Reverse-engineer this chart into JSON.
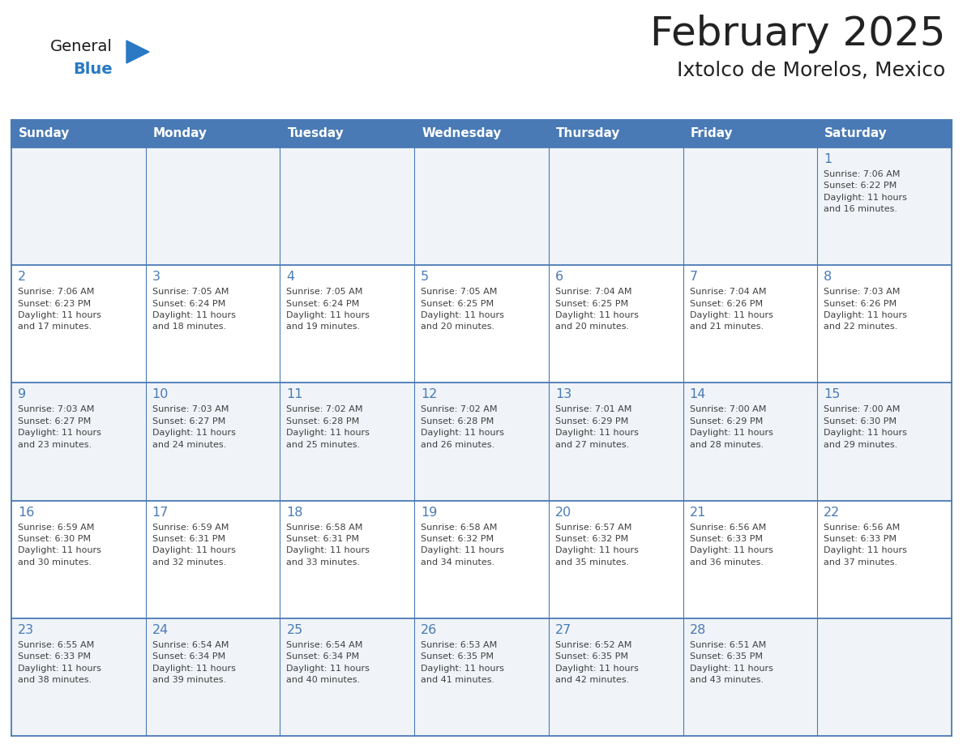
{
  "title": "February 2025",
  "subtitle": "Ixtolco de Morelos, Mexico",
  "days_of_week": [
    "Sunday",
    "Monday",
    "Tuesday",
    "Wednesday",
    "Thursday",
    "Friday",
    "Saturday"
  ],
  "header_bg": "#4a7ab5",
  "header_text": "#FFFFFF",
  "cell_bg_odd": "#f0f4f8",
  "cell_bg_even": "#FFFFFF",
  "border_color": "#4a7ab5",
  "text_color": "#404040",
  "day_number_color": "#4a7ab5",
  "title_color": "#222222",
  "subtitle_color": "#222222",
  "logo_color_general": "#1a1a1a",
  "logo_color_blue": "#2979C4",
  "logo_triangle_color": "#2979C4",
  "calendar_data": [
    [
      null,
      null,
      null,
      null,
      null,
      null,
      {
        "day": "1",
        "sunrise": "7:06 AM",
        "sunset": "6:22 PM",
        "daylight": "11 hours",
        "daylight2": "and 16 minutes."
      }
    ],
    [
      {
        "day": "2",
        "sunrise": "7:06 AM",
        "sunset": "6:23 PM",
        "daylight": "11 hours",
        "daylight2": "and 17 minutes."
      },
      {
        "day": "3",
        "sunrise": "7:05 AM",
        "sunset": "6:24 PM",
        "daylight": "11 hours",
        "daylight2": "and 18 minutes."
      },
      {
        "day": "4",
        "sunrise": "7:05 AM",
        "sunset": "6:24 PM",
        "daylight": "11 hours",
        "daylight2": "and 19 minutes."
      },
      {
        "day": "5",
        "sunrise": "7:05 AM",
        "sunset": "6:25 PM",
        "daylight": "11 hours",
        "daylight2": "and 20 minutes."
      },
      {
        "day": "6",
        "sunrise": "7:04 AM",
        "sunset": "6:25 PM",
        "daylight": "11 hours",
        "daylight2": "and 20 minutes."
      },
      {
        "day": "7",
        "sunrise": "7:04 AM",
        "sunset": "6:26 PM",
        "daylight": "11 hours",
        "daylight2": "and 21 minutes."
      },
      {
        "day": "8",
        "sunrise": "7:03 AM",
        "sunset": "6:26 PM",
        "daylight": "11 hours",
        "daylight2": "and 22 minutes."
      }
    ],
    [
      {
        "day": "9",
        "sunrise": "7:03 AM",
        "sunset": "6:27 PM",
        "daylight": "11 hours",
        "daylight2": "and 23 minutes."
      },
      {
        "day": "10",
        "sunrise": "7:03 AM",
        "sunset": "6:27 PM",
        "daylight": "11 hours",
        "daylight2": "and 24 minutes."
      },
      {
        "day": "11",
        "sunrise": "7:02 AM",
        "sunset": "6:28 PM",
        "daylight": "11 hours",
        "daylight2": "and 25 minutes."
      },
      {
        "day": "12",
        "sunrise": "7:02 AM",
        "sunset": "6:28 PM",
        "daylight": "11 hours",
        "daylight2": "and 26 minutes."
      },
      {
        "day": "13",
        "sunrise": "7:01 AM",
        "sunset": "6:29 PM",
        "daylight": "11 hours",
        "daylight2": "and 27 minutes."
      },
      {
        "day": "14",
        "sunrise": "7:00 AM",
        "sunset": "6:29 PM",
        "daylight": "11 hours",
        "daylight2": "and 28 minutes."
      },
      {
        "day": "15",
        "sunrise": "7:00 AM",
        "sunset": "6:30 PM",
        "daylight": "11 hours",
        "daylight2": "and 29 minutes."
      }
    ],
    [
      {
        "day": "16",
        "sunrise": "6:59 AM",
        "sunset": "6:30 PM",
        "daylight": "11 hours",
        "daylight2": "and 30 minutes."
      },
      {
        "day": "17",
        "sunrise": "6:59 AM",
        "sunset": "6:31 PM",
        "daylight": "11 hours",
        "daylight2": "and 32 minutes."
      },
      {
        "day": "18",
        "sunrise": "6:58 AM",
        "sunset": "6:31 PM",
        "daylight": "11 hours",
        "daylight2": "and 33 minutes."
      },
      {
        "day": "19",
        "sunrise": "6:58 AM",
        "sunset": "6:32 PM",
        "daylight": "11 hours",
        "daylight2": "and 34 minutes."
      },
      {
        "day": "20",
        "sunrise": "6:57 AM",
        "sunset": "6:32 PM",
        "daylight": "11 hours",
        "daylight2": "and 35 minutes."
      },
      {
        "day": "21",
        "sunrise": "6:56 AM",
        "sunset": "6:33 PM",
        "daylight": "11 hours",
        "daylight2": "and 36 minutes."
      },
      {
        "day": "22",
        "sunrise": "6:56 AM",
        "sunset": "6:33 PM",
        "daylight": "11 hours",
        "daylight2": "and 37 minutes."
      }
    ],
    [
      {
        "day": "23",
        "sunrise": "6:55 AM",
        "sunset": "6:33 PM",
        "daylight": "11 hours",
        "daylight2": "and 38 minutes."
      },
      {
        "day": "24",
        "sunrise": "6:54 AM",
        "sunset": "6:34 PM",
        "daylight": "11 hours",
        "daylight2": "and 39 minutes."
      },
      {
        "day": "25",
        "sunrise": "6:54 AM",
        "sunset": "6:34 PM",
        "daylight": "11 hours",
        "daylight2": "and 40 minutes."
      },
      {
        "day": "26",
        "sunrise": "6:53 AM",
        "sunset": "6:35 PM",
        "daylight": "11 hours",
        "daylight2": "and 41 minutes."
      },
      {
        "day": "27",
        "sunrise": "6:52 AM",
        "sunset": "6:35 PM",
        "daylight": "11 hours",
        "daylight2": "and 42 minutes."
      },
      {
        "day": "28",
        "sunrise": "6:51 AM",
        "sunset": "6:35 PM",
        "daylight": "11 hours",
        "daylight2": "and 43 minutes."
      },
      null
    ]
  ]
}
